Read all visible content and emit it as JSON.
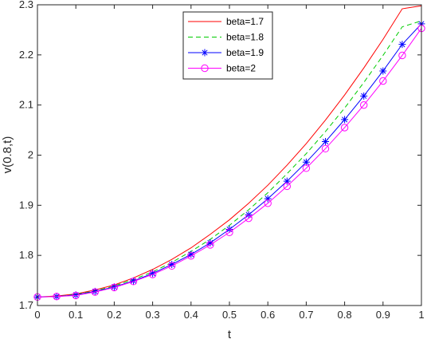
{
  "chart_data": {
    "type": "line",
    "xlabel": "t",
    "ylabel": "v(0.8,t)",
    "xlim": [
      0,
      1
    ],
    "ylim": [
      1.7,
      2.3
    ],
    "xticks": [
      "0",
      "0.1",
      "0.2",
      "0.3",
      "0.4",
      "0.5",
      "0.6",
      "0.7",
      "0.8",
      "0.9",
      "1"
    ],
    "yticks": [
      "1.7",
      "1.8",
      "1.9",
      "2",
      "2.1",
      "2.2",
      "2.3"
    ],
    "grid": false,
    "legend_position": "top-center",
    "x": [
      0,
      0.05,
      0.1,
      0.15,
      0.2,
      0.25,
      0.3,
      0.35,
      0.4,
      0.45,
      0.5,
      0.55,
      0.6,
      0.65,
      0.7,
      0.75,
      0.8,
      0.85,
      0.9,
      0.95,
      1
    ],
    "series": [
      {
        "name": "beta=1.7",
        "color": "#ff0000",
        "line_style": "solid",
        "marker": "none",
        "values": [
          1.717,
          1.719,
          1.723,
          1.731,
          1.741,
          1.755,
          1.772,
          1.792,
          1.815,
          1.842,
          1.871,
          1.904,
          1.94,
          1.98,
          2.023,
          2.07,
          2.12,
          2.174,
          2.231,
          2.292,
          2.298
        ]
      },
      {
        "name": "beta=1.8",
        "color": "#00cc00",
        "line_style": "dashed",
        "marker": "none",
        "values": [
          1.717,
          1.718,
          1.722,
          1.729,
          1.739,
          1.752,
          1.767,
          1.786,
          1.808,
          1.832,
          1.86,
          1.891,
          1.925,
          1.963,
          2.003,
          2.047,
          2.094,
          2.145,
          2.199,
          2.256,
          2.268
        ]
      },
      {
        "name": "beta=1.9",
        "color": "#0000ff",
        "line_style": "solid",
        "marker": "star",
        "values": [
          1.717,
          1.718,
          1.721,
          1.728,
          1.737,
          1.749,
          1.764,
          1.782,
          1.802,
          1.825,
          1.852,
          1.881,
          1.913,
          1.948,
          1.986,
          2.027,
          2.071,
          2.118,
          2.168,
          2.221,
          2.262
        ]
      },
      {
        "name": "beta=2",
        "color": "#ff00ff",
        "line_style": "solid",
        "marker": "circle",
        "values": [
          1.717,
          1.718,
          1.72,
          1.727,
          1.736,
          1.748,
          1.762,
          1.779,
          1.799,
          1.821,
          1.846,
          1.874,
          1.904,
          1.938,
          1.974,
          2.013,
          2.055,
          2.1,
          2.148,
          2.199,
          2.253
        ]
      }
    ]
  }
}
